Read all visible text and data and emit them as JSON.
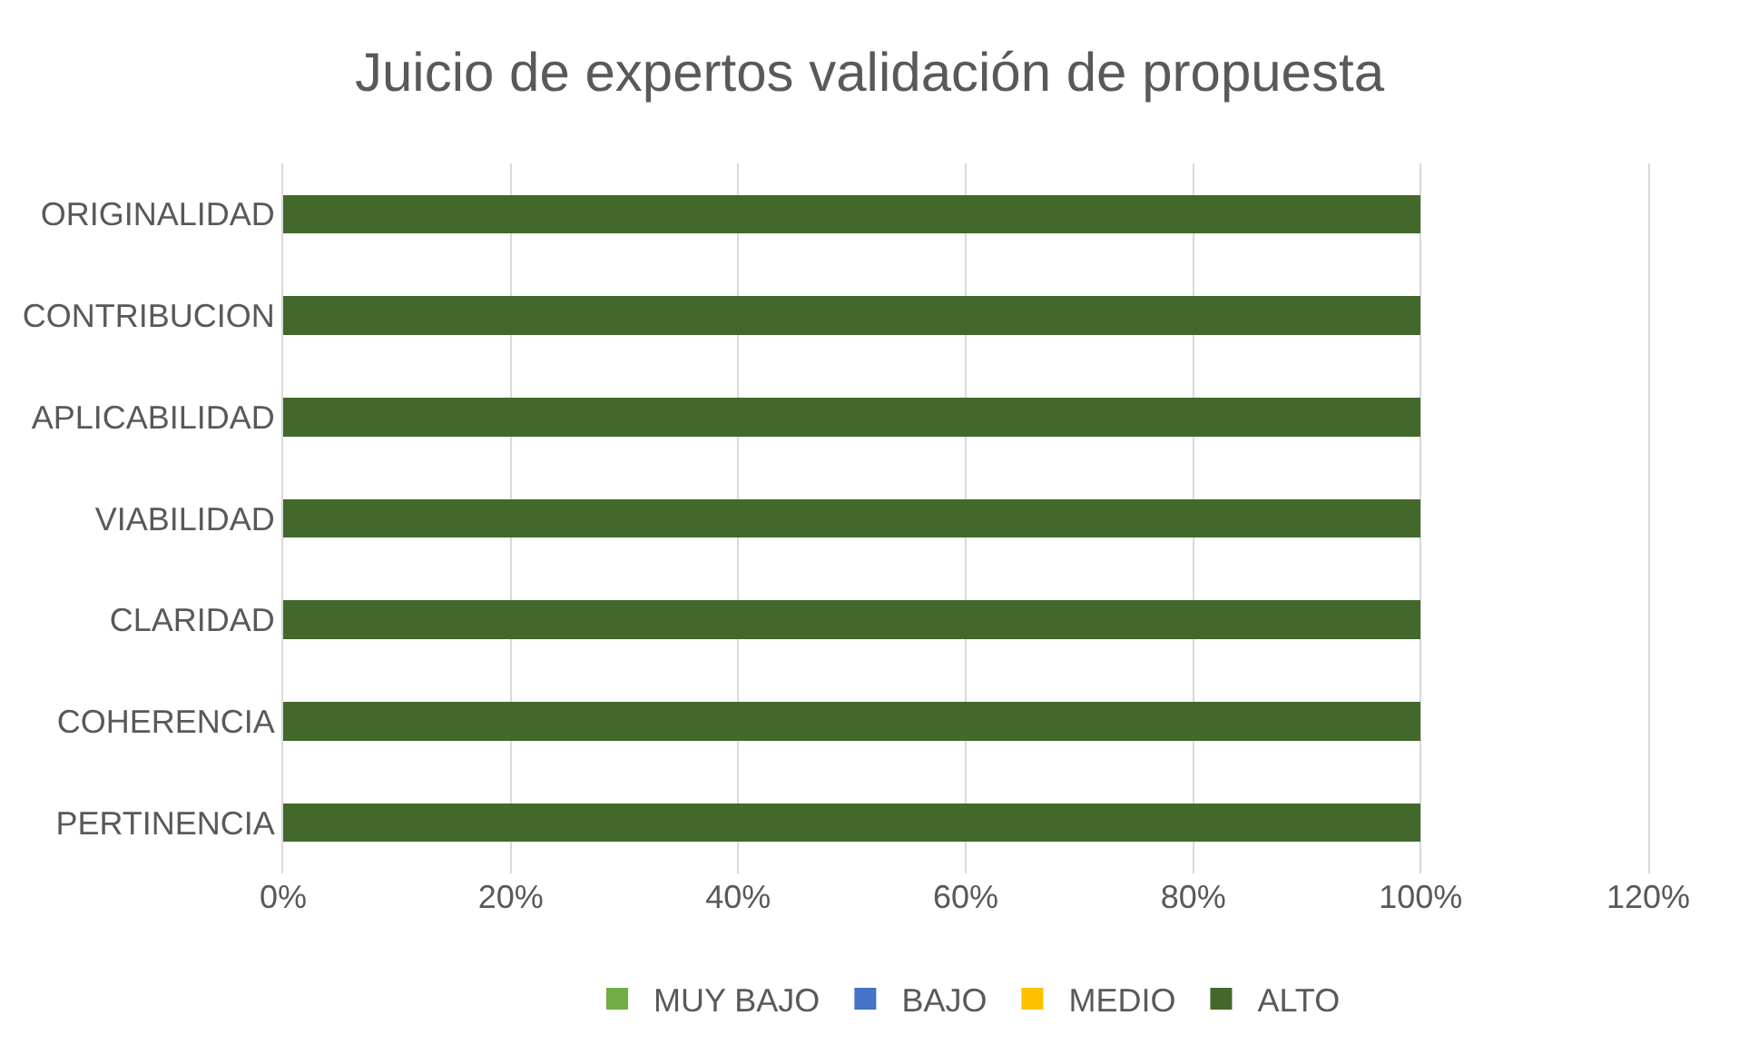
{
  "chart_data": {
    "type": "bar",
    "title": "Juicio de expertos validación de propuesta",
    "orientation": "horizontal",
    "stacked": true,
    "categories": [
      "ORIGINALIDAD",
      "CONTRIBUCION",
      "APLICABILIDAD",
      "VIABILIDAD",
      "CLARIDAD",
      "COHERENCIA",
      "PERTINENCIA"
    ],
    "series": [
      {
        "name": "MUY BAJO",
        "color": "#70ad47",
        "values": [
          0,
          0,
          0,
          0,
          0,
          0,
          0
        ]
      },
      {
        "name": "BAJO",
        "color": "#4472c4",
        "values": [
          0,
          0,
          0,
          0,
          0,
          0,
          0
        ]
      },
      {
        "name": "MEDIO",
        "color": "#ffc000",
        "values": [
          0,
          0,
          0,
          0,
          0,
          0,
          0
        ]
      },
      {
        "name": "ALTO",
        "color": "#43682b",
        "values": [
          100,
          100,
          100,
          100,
          100,
          100,
          100
        ]
      }
    ],
    "xlim": [
      0,
      120
    ],
    "xticks": [
      {
        "value": 0,
        "label": "0%"
      },
      {
        "value": 20,
        "label": "20%"
      },
      {
        "value": 40,
        "label": "40%"
      },
      {
        "value": 60,
        "label": "60%"
      },
      {
        "value": 80,
        "label": "80%"
      },
      {
        "value": 100,
        "label": "100%"
      },
      {
        "value": 120,
        "label": "120%"
      }
    ],
    "grid": "x",
    "legend": "bottom"
  }
}
